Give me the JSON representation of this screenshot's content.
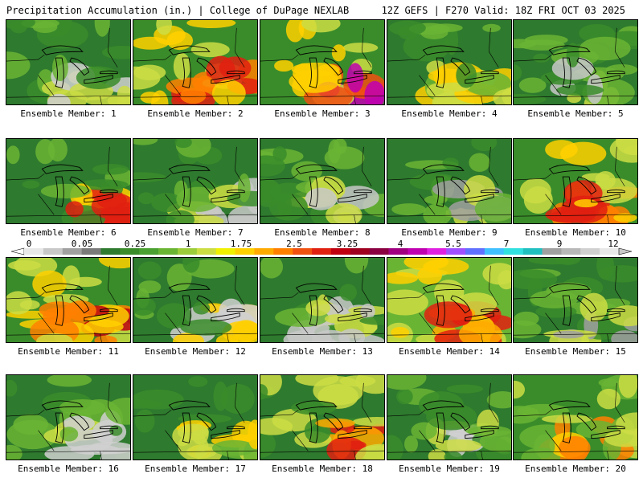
{
  "header": {
    "left": "Precipitation Accumulation (in.) | College of DuPage NEXLAB",
    "right": "12Z GEFS | F270 Valid: 18Z FRI OCT 03 2025"
  },
  "scale": {
    "labels": [
      "0",
      "0.05",
      "0.25",
      "1",
      "1.75",
      "2.5",
      "3.25",
      "4",
      "5.5",
      "7",
      "9",
      "12"
    ],
    "colors": [
      "#e8e8e8",
      "#c8c8c8",
      "#a0a0a0",
      "#7a7a7a",
      "#2e7a2e",
      "#3a8c2a",
      "#4aa030",
      "#6ab434",
      "#9ccc3a",
      "#ccdd44",
      "#f0f000",
      "#ffd000",
      "#ffaa00",
      "#ff8000",
      "#f05010",
      "#e02010",
      "#c00010",
      "#a00020",
      "#8a0040",
      "#a00080",
      "#c000b0",
      "#e020e0",
      "#a050ff",
      "#6070ff",
      "#40c0ff",
      "#30e0e0",
      "#20c0c0",
      "#a0a0a0",
      "#b8b8b8",
      "#d0d0d0",
      "#e8e8e8"
    ]
  },
  "members": [
    {
      "label": "Ensemble Member: 1",
      "palette": [
        "#2e7a2e",
        "#3a8c2a",
        "#6ab434",
        "#ccdd44",
        "#d0d0d0"
      ]
    },
    {
      "label": "Ensemble Member: 2",
      "palette": [
        "#3a8c2a",
        "#ccdd44",
        "#ffd000",
        "#ff8000",
        "#e02010"
      ]
    },
    {
      "label": "Ensemble Member: 3",
      "palette": [
        "#3a8c2a",
        "#ccdd44",
        "#ffd000",
        "#f05010",
        "#c000b0"
      ]
    },
    {
      "label": "Ensemble Member: 4",
      "palette": [
        "#2e7a2e",
        "#3a8c2a",
        "#6ab434",
        "#ccdd44",
        "#ffd000"
      ]
    },
    {
      "label": "Ensemble Member: 5",
      "palette": [
        "#2e7a2e",
        "#3a8c2a",
        "#6ab434",
        "#ccdd44",
        "#c8c8c8"
      ]
    },
    {
      "label": "Ensemble Member: 6",
      "palette": [
        "#2e7a2e",
        "#3a8c2a",
        "#6ab434",
        "#ffd000",
        "#e02010"
      ]
    },
    {
      "label": "Ensemble Member: 7",
      "palette": [
        "#2e7a2e",
        "#3a8c2a",
        "#6ab434",
        "#ccdd44",
        "#c8c8c8"
      ]
    },
    {
      "label": "Ensemble Member: 8",
      "palette": [
        "#2e7a2e",
        "#3a8c2a",
        "#6ab434",
        "#ccdd44",
        "#c8c8c8"
      ]
    },
    {
      "label": "Ensemble Member: 9",
      "palette": [
        "#2e7a2e",
        "#3a8c2a",
        "#6ab434",
        "#ccdd44",
        "#a0a0a0"
      ]
    },
    {
      "label": "Ensemble Member: 10",
      "palette": [
        "#3a8c2a",
        "#ccdd44",
        "#ffd000",
        "#ff8000",
        "#e02010"
      ]
    },
    {
      "label": "Ensemble Member: 11",
      "palette": [
        "#3a8c2a",
        "#ccdd44",
        "#ffd000",
        "#ff8000",
        "#c00010"
      ]
    },
    {
      "label": "Ensemble Member: 12",
      "palette": [
        "#2e7a2e",
        "#3a8c2a",
        "#6ab434",
        "#ffd000",
        "#d0d0d0"
      ]
    },
    {
      "label": "Ensemble Member: 13",
      "palette": [
        "#2e7a2e",
        "#3a8c2a",
        "#6ab434",
        "#ccdd44",
        "#c8c8c8"
      ]
    },
    {
      "label": "Ensemble Member: 14",
      "palette": [
        "#6ab434",
        "#ccdd44",
        "#ffd000",
        "#ffaa00",
        "#e02010"
      ]
    },
    {
      "label": "Ensemble Member: 15",
      "palette": [
        "#2e7a2e",
        "#3a8c2a",
        "#6ab434",
        "#ccdd44",
        "#a0a0a0"
      ]
    },
    {
      "label": "Ensemble Member: 16",
      "palette": [
        "#2e7a2e",
        "#3a8c2a",
        "#6ab434",
        "#ccdd44",
        "#d0d0d0"
      ]
    },
    {
      "label": "Ensemble Member: 17",
      "palette": [
        "#2e7a2e",
        "#3a8c2a",
        "#6ab434",
        "#ccdd44",
        "#ffd000"
      ]
    },
    {
      "label": "Ensemble Member: 18",
      "palette": [
        "#2e7a2e",
        "#3a8c2a",
        "#ccdd44",
        "#ffaa00",
        "#e02010"
      ]
    },
    {
      "label": "Ensemble Member: 19",
      "palette": [
        "#2e7a2e",
        "#3a8c2a",
        "#6ab434",
        "#ccdd44",
        "#d0d0d0"
      ]
    },
    {
      "label": "Ensemble Member: 20",
      "palette": [
        "#3a8c2a",
        "#6ab434",
        "#ccdd44",
        "#ffd000",
        "#ff8000"
      ]
    }
  ]
}
